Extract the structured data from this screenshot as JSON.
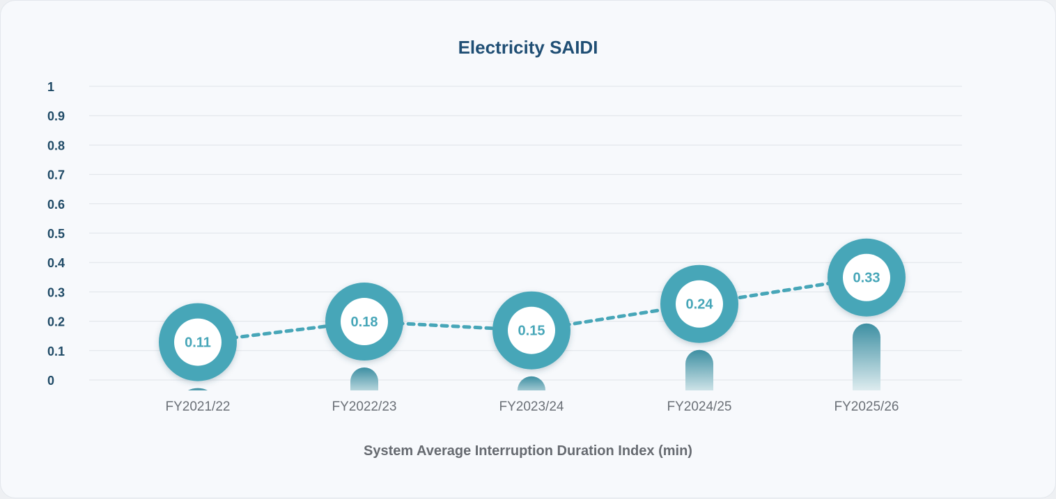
{
  "chart_data": {
    "type": "line",
    "title": "Electricity SAIDI",
    "xlabel": "System Average Interruption Duration Index (min)",
    "ylabel": "",
    "categories": [
      "FY2021/22",
      "FY2022/23",
      "FY2023/24",
      "FY2024/25",
      "FY2025/26"
    ],
    "values": [
      0.11,
      0.18,
      0.15,
      0.24,
      0.33
    ],
    "data_labels": [
      "0.11",
      "0.18",
      "0.15",
      "0.24",
      "0.33"
    ],
    "ylim": [
      0,
      1
    ],
    "yticks": [
      "0",
      "0.1",
      "0.2",
      "0.3",
      "0.4",
      "0.5",
      "0.6",
      "0.7",
      "0.8",
      "0.9",
      "1"
    ],
    "grid": true,
    "legend": "none",
    "colors": {
      "accent": "#47a6b8",
      "accent_dark": "#2f7f95",
      "grid": "#dfe3e8"
    }
  }
}
